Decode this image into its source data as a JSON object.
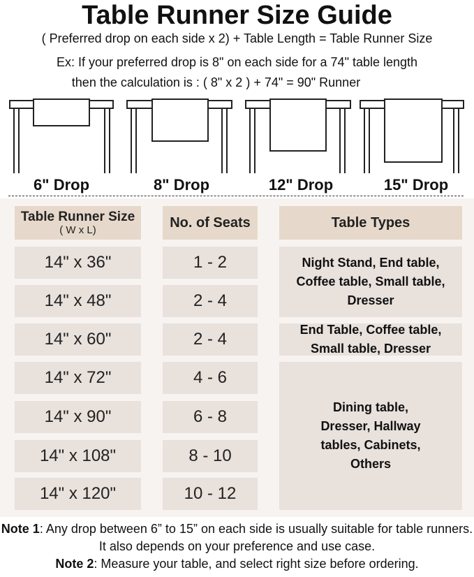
{
  "title": "Table Runner Size Guide",
  "formula": "( Preferred drop on each side x 2) + Table Length = Table Runner Size",
  "example_line1": "Ex: If your preferred drop is 8\" on each side for a 74\" table length",
  "example_line2": "then the calculation is : ( 8\" x 2 ) + 74\" = 90\" Runner",
  "drops": [
    "6\" Drop",
    "8\" Drop",
    "12\" Drop",
    "15\" Drop"
  ],
  "headers": {
    "size": "Table Runner Size",
    "size_sub": "( W x L)",
    "seats": "No. of Seats",
    "types": "Table Types"
  },
  "rows": [
    {
      "size": "14\" x 36\"",
      "seats": "1 - 2"
    },
    {
      "size": "14\" x 48\"",
      "seats": "2 - 4"
    },
    {
      "size": "14\" x 60\"",
      "seats": "2 - 4"
    },
    {
      "size": "14\" x 72\"",
      "seats": "4 - 6"
    },
    {
      "size": "14\" x 90\"",
      "seats": "6 - 8"
    },
    {
      "size": "14\" x 108\"",
      "seats": "8 - 10"
    },
    {
      "size": "14\" x 120\"",
      "seats": "10 - 12"
    }
  ],
  "types": [
    "Night Stand, End table, Coffee table, Small table, Dresser",
    "End Table, Coffee table, Small table, Dresser",
    "Dining table, Dresser, Hallway tables, Cabinets, Others"
  ],
  "notes": {
    "n1_label": "Note 1",
    "n1_text": ": Any drop between 6” to 15” on each side is usually suitable for table runners. It also depends on your preference and use case.",
    "n2_label": "Note 2",
    "n2_text": ": Measure your table, and select right size before ordering."
  }
}
